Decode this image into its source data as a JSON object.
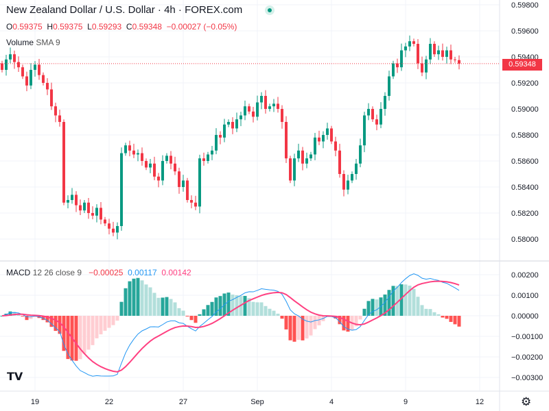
{
  "header": {
    "title": "New Zealand Dollar / U.S. Dollar · 4h · FOREX.com",
    "ohlc": {
      "o_label": "O",
      "o": "0.59375",
      "h_label": "H",
      "h": "0.59375",
      "l_label": "L",
      "l": "0.59293",
      "c_label": "C",
      "c": "0.59348",
      "change": "−0.00027 (−0.05%)"
    },
    "volume_label": "Volume",
    "volume_sma": "SMA 9"
  },
  "macd_legend": {
    "label": "MACD",
    "params": "12 26 close 9",
    "hist": "−0.00025",
    "macd": "0.00117",
    "signal": "0.00142"
  },
  "current_price": "0.59348",
  "colors": {
    "up": "#089981",
    "down": "#F23645",
    "macd": "#2196F3",
    "signal": "#FF4081"
  },
  "logo": "TV",
  "chart_data": {
    "type": "candlestick",
    "symbol": "NZDUSD",
    "interval": "4h",
    "ylim": [
      0.5796,
      0.5986
    ],
    "y_ticks": [
      "0.59800",
      "0.59600",
      "0.59400",
      "0.59200",
      "0.59000",
      "0.58800",
      "0.58600",
      "0.58400",
      "0.58200",
      "0.58000"
    ],
    "y_tick_values": [
      0.598,
      0.596,
      0.594,
      0.592,
      0.59,
      0.588,
      0.586,
      0.584,
      0.582,
      0.58
    ],
    "macd_ticks": [
      "0.00200",
      "0.00100",
      "0.00000",
      "−0.00100",
      "−0.00200",
      "−0.00300"
    ],
    "macd_tick_values": [
      0.002,
      0.001,
      0,
      -0.001,
      -0.002,
      -0.003
    ],
    "x_ticks": [
      {
        "label": "19",
        "index": 8
      },
      {
        "label": "22",
        "index": 26
      },
      {
        "label": "27",
        "index": 44
      },
      {
        "label": "Sep",
        "index": 62
      },
      {
        "label": "4",
        "index": 80
      },
      {
        "label": "9",
        "index": 98
      },
      {
        "label": "12",
        "index": 116
      }
    ],
    "open_first": 0.5935,
    "closes": [
      0.593,
      0.5938,
      0.5942,
      0.5936,
      0.5932,
      0.5925,
      0.5918,
      0.593,
      0.5934,
      0.5926,
      0.592,
      0.5915,
      0.5902,
      0.5895,
      0.589,
      0.5828,
      0.583,
      0.5834,
      0.5826,
      0.5822,
      0.5828,
      0.582,
      0.5818,
      0.5824,
      0.5815,
      0.5812,
      0.5808,
      0.5805,
      0.581,
      0.5866,
      0.5872,
      0.5868,
      0.5865,
      0.5866,
      0.586,
      0.5855,
      0.5858,
      0.5848,
      0.5845,
      0.586,
      0.5864,
      0.5858,
      0.5852,
      0.584,
      0.5845,
      0.583,
      0.5828,
      0.5825,
      0.5862,
      0.586,
      0.5865,
      0.5868,
      0.588,
      0.5878,
      0.5888,
      0.589,
      0.5885,
      0.5892,
      0.5895,
      0.5902,
      0.5898,
      0.5894,
      0.5905,
      0.591,
      0.59,
      0.5902,
      0.5904,
      0.59,
      0.589,
      0.5862,
      0.5845,
      0.5862,
      0.5868,
      0.5858,
      0.5862,
      0.5865,
      0.5878,
      0.5875,
      0.588,
      0.5885,
      0.5875,
      0.5868,
      0.585,
      0.5838,
      0.5845,
      0.585,
      0.5858,
      0.5872,
      0.5895,
      0.59,
      0.5892,
      0.5888,
      0.59,
      0.591,
      0.5925,
      0.5935,
      0.5932,
      0.5945,
      0.5948,
      0.5952,
      0.595,
      0.5935,
      0.5928,
      0.5938,
      0.595,
      0.5942,
      0.5945,
      0.594,
      0.5945,
      0.5938,
      0.59375,
      0.59348
    ]
  }
}
